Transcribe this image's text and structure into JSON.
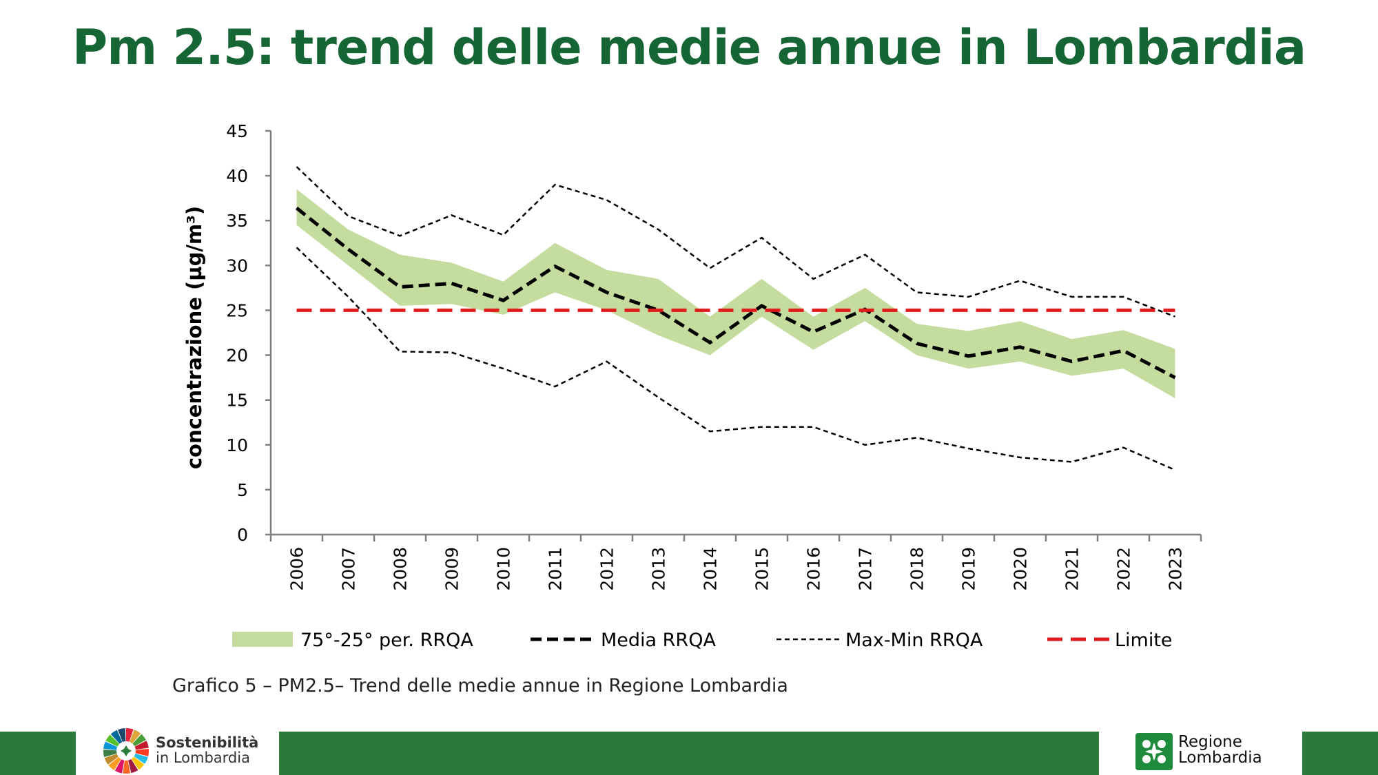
{
  "header": {
    "title": "Pm 2.5: trend delle medie annue in Lombardia"
  },
  "colors": {
    "title": "#166534",
    "band": "#c5dc9f",
    "media": "#000000",
    "maxmin": "#000000",
    "limite": "#e31a1c",
    "footer": "#2a7a3a"
  },
  "chart_data": {
    "type": "line",
    "title": "",
    "xlabel": "",
    "ylabel": "concentrazione (µg/m³)",
    "ylim": [
      0,
      45
    ],
    "yticks": [
      0,
      5,
      10,
      15,
      20,
      25,
      30,
      35,
      40,
      45
    ],
    "categories": [
      "2006",
      "2007",
      "2008",
      "2009",
      "2010",
      "2011",
      "2012",
      "2013",
      "2014",
      "2015",
      "2016",
      "2017",
      "2018",
      "2019",
      "2020",
      "2021",
      "2022",
      "2023"
    ],
    "grid": false,
    "legend_position": "bottom",
    "band": {
      "name": "75°-25° per. RRQA",
      "upper": [
        38.5,
        34.0,
        31.2,
        30.3,
        28.2,
        32.5,
        29.5,
        28.5,
        24.3,
        28.5,
        24.3,
        27.5,
        23.5,
        22.7,
        23.8,
        21.8,
        22.8,
        20.7
      ],
      "lower": [
        34.5,
        30.0,
        25.5,
        25.7,
        24.5,
        27.0,
        25.0,
        22.2,
        20.0,
        24.3,
        20.6,
        23.8,
        20.0,
        18.5,
        19.3,
        17.7,
        18.5,
        15.2
      ]
    },
    "series": [
      {
        "name": "Media RRQA",
        "style": "dashed-bold",
        "values": [
          36.4,
          31.8,
          27.6,
          28.0,
          26.1,
          29.9,
          27.0,
          25.0,
          21.4,
          25.5,
          22.6,
          25.1,
          21.3,
          19.9,
          20.9,
          19.3,
          20.5,
          17.5
        ]
      },
      {
        "name": "Max",
        "style": "dashed-thin",
        "values": [
          41.0,
          35.5,
          33.3,
          35.6,
          33.4,
          39.0,
          37.3,
          34.0,
          29.7,
          33.1,
          28.5,
          31.2,
          27.0,
          26.5,
          28.3,
          26.5,
          26.5,
          24.3
        ]
      },
      {
        "name": "Min",
        "style": "dashed-thin",
        "values": [
          32.0,
          26.5,
          20.4,
          20.3,
          18.5,
          16.5,
          19.3,
          15.3,
          11.5,
          12.0,
          12.0,
          10.0,
          10.8,
          9.6,
          8.6,
          8.1,
          9.7,
          7.2
        ]
      },
      {
        "name": "Limite",
        "style": "dashed-red",
        "values": [
          25,
          25,
          25,
          25,
          25,
          25,
          25,
          25,
          25,
          25,
          25,
          25,
          25,
          25,
          25,
          25,
          25,
          25
        ]
      }
    ],
    "legend": [
      {
        "key": "band",
        "label": "75°-25° per. RRQA"
      },
      {
        "key": "media",
        "label": "Media RRQA"
      },
      {
        "key": "maxmin",
        "label": "Max-Min RRQA"
      },
      {
        "key": "limite",
        "label": "Limite"
      }
    ]
  },
  "caption": "Grafico 5 – PM2.5– Trend delle medie annue in Regione Lombardia",
  "footer": {
    "left_logo": {
      "line1": "Sostenibilità",
      "line2": "in Lombardia",
      "icon": "sdg-wheel-icon"
    },
    "right_logo": {
      "line1": "Regione",
      "line2": "Lombardia",
      "icon": "rosa-camuna-icon"
    }
  }
}
